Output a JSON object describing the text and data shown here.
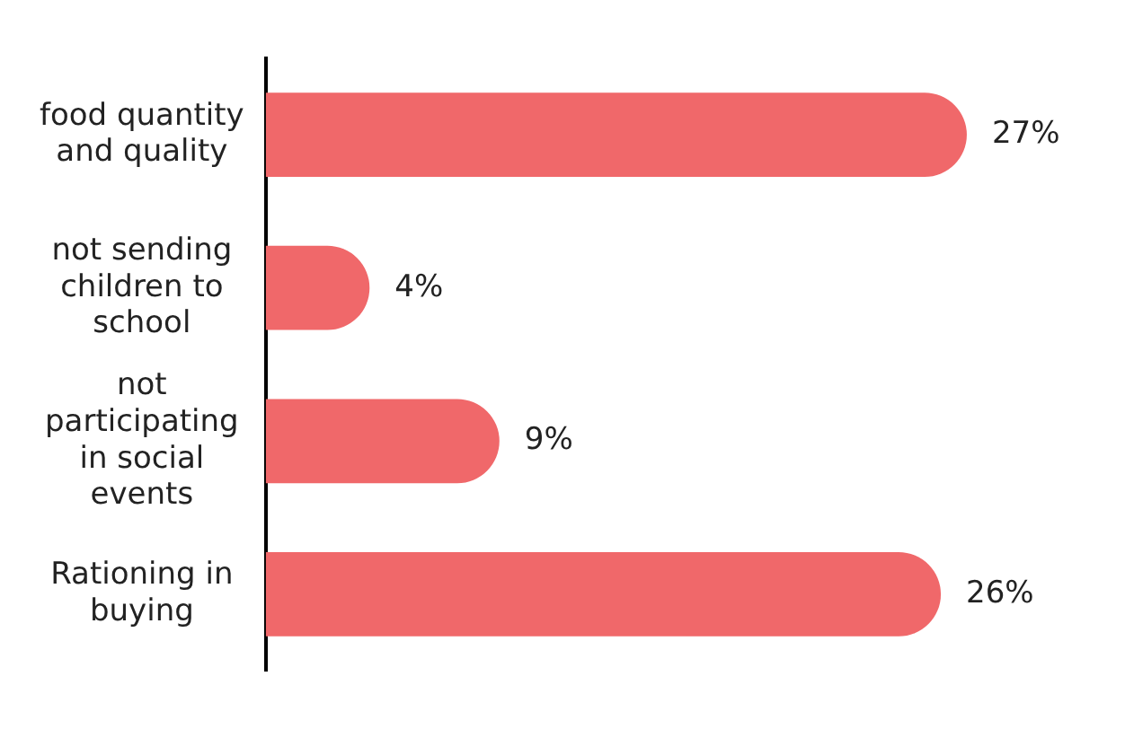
{
  "chart_data": {
    "type": "bar",
    "orientation": "horizontal",
    "categories": [
      "food quantity and quality",
      "not sending children to school",
      "not participating in social events",
      "Rationing in buying"
    ],
    "values": [
      27,
      4,
      9,
      26
    ],
    "color": "#f0686a",
    "data_labels": true,
    "value_labels": [
      "27%",
      "4%",
      "9%",
      "26%"
    ],
    "grid": false,
    "legend": false,
    "tick_labels": "y"
  }
}
